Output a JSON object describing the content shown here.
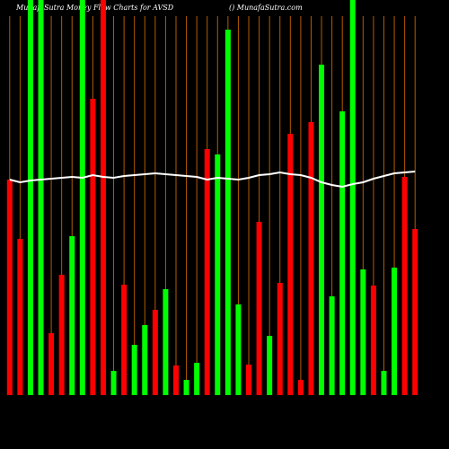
{
  "chart_data": {
    "type": "bar",
    "title": "MunafaSutra  Money Flow  Charts for AVSD",
    "subtitle": "() MunafaSutra.com",
    "categories": [
      null,
      null,
      null,
      null,
      null,
      null,
      null,
      null,
      null,
      null,
      null,
      null,
      null,
      null,
      null,
      null,
      null,
      null,
      null,
      null,
      null,
      null,
      null,
      null,
      null,
      null,
      null,
      null,
      null,
      null,
      null,
      null,
      null,
      null,
      null,
      null,
      null,
      null,
      null,
      null
    ],
    "series": [
      {
        "name": "flow",
        "values": [
          240,
          174,
          440,
          440,
          69,
          134,
          177,
          440,
          330,
          440,
          27,
          123,
          56,
          78,
          95,
          118,
          33,
          17,
          36,
          274,
          268,
          407,
          101,
          34,
          193,
          66,
          125,
          291,
          17,
          304,
          368,
          110,
          316,
          440,
          140,
          122,
          27,
          142,
          243,
          185
        ],
        "colors": [
          "#ff0000",
          "#ff0000",
          "#00ff00",
          "#00ff00",
          "#ff0000",
          "#ff0000",
          "#00ff00",
          "#00ff00",
          "#ff0000",
          "#ff0000",
          "#00ff00",
          "#ff0000",
          "#00ff00",
          "#00ff00",
          "#ff0000",
          "#00ff00",
          "#ff0000",
          "#00ff00",
          "#00ff00",
          "#ff0000",
          "#00ff00",
          "#00ff00",
          "#00ff00",
          "#ff0000",
          "#ff0000",
          "#00ff00",
          "#ff0000",
          "#ff0000",
          "#ff0000",
          "#ff0000",
          "#00ff00",
          "#00ff00",
          "#00ff00",
          "#00ff00",
          "#00ff00",
          "#ff0000",
          "#00ff00",
          "#00ff00",
          "#ff0000",
          "#ff0000"
        ]
      },
      {
        "name": "line",
        "color": "#ffffff",
        "values": [
          240,
          237,
          239,
          240,
          241,
          242,
          243,
          242,
          245,
          243,
          242,
          244,
          245,
          246,
          247,
          246,
          245,
          244,
          243,
          240,
          242,
          241,
          240,
          242,
          245,
          246,
          248,
          246,
          245,
          242,
          237,
          234,
          232,
          235,
          237,
          241,
          244,
          247,
          248,
          249
        ]
      }
    ],
    "ylim": [
      0,
      440
    ],
    "grid_color": "#b35c00"
  }
}
